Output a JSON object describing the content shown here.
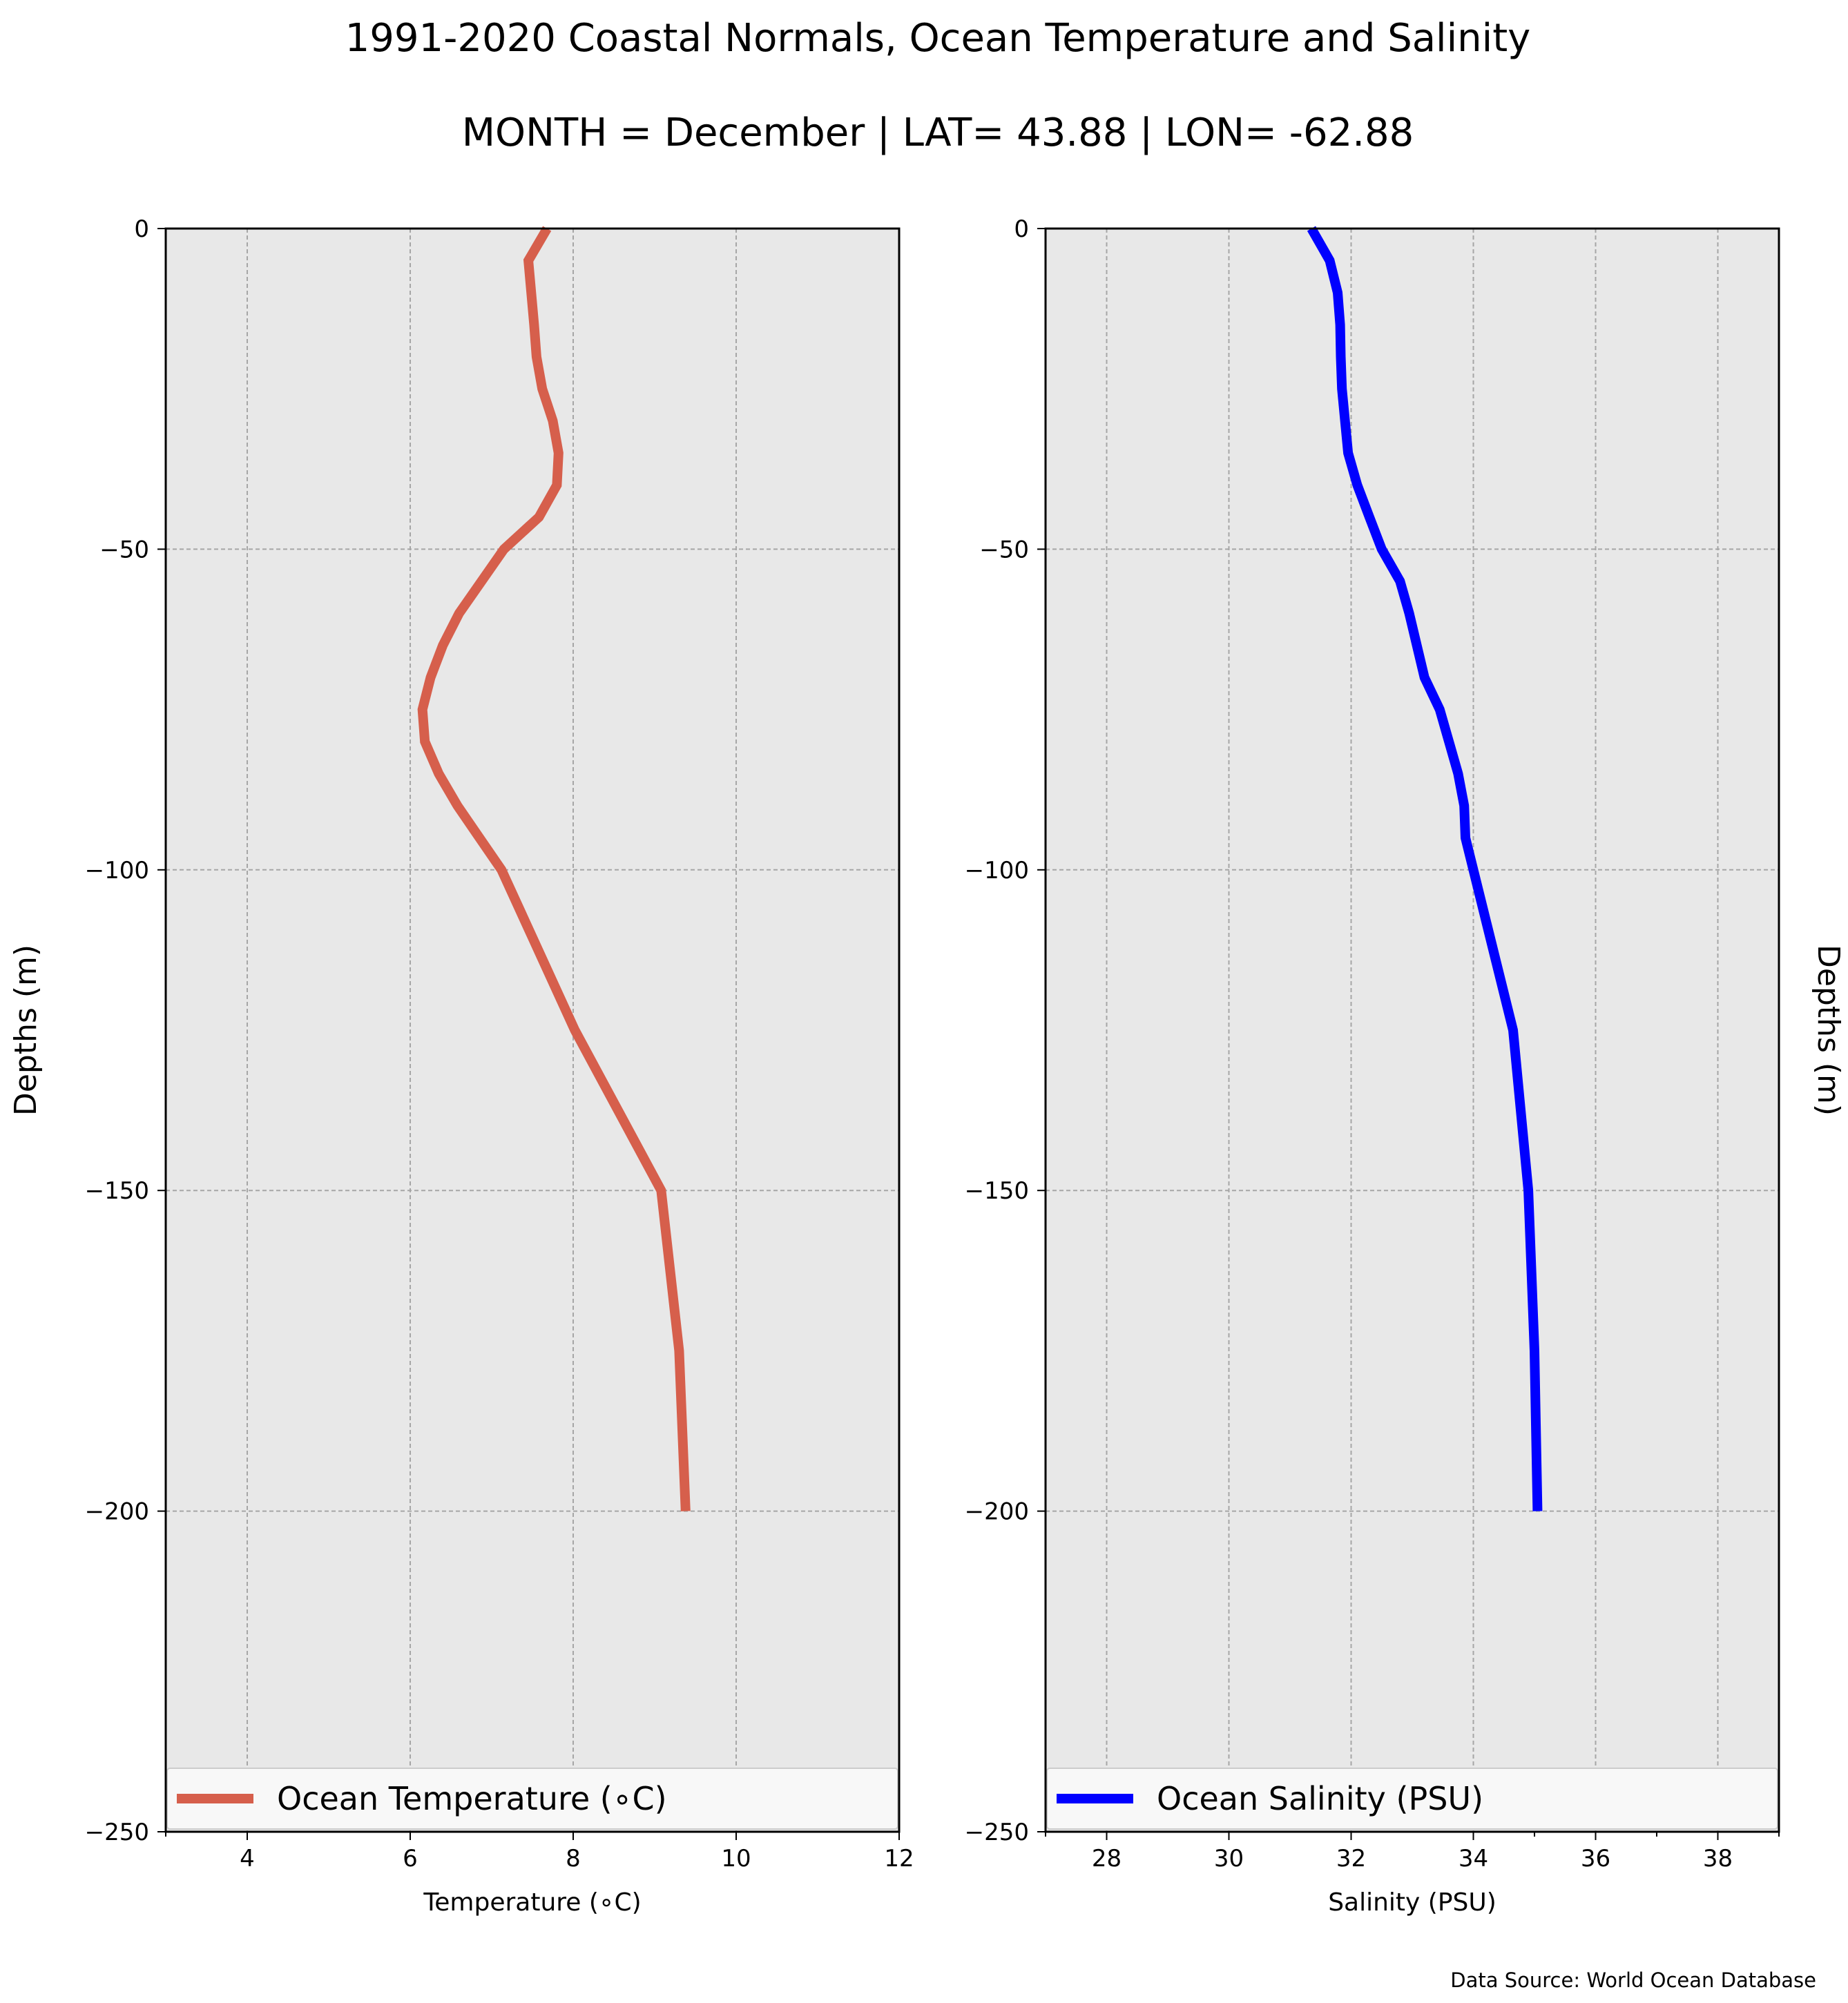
{
  "title": "1991-2020 Coastal Normals, Ocean Temperature and Salinity",
  "subtitle": "MONTH = December | LAT= 43.88 | LON= -62.88",
  "source": "Data Source: World Ocean Database",
  "colors": {
    "background": "#ffffff",
    "plot_background": "#e8e8e8",
    "grid": "#a6a6a6",
    "temperature": "#d65f4c",
    "salinity": "#0000ff"
  },
  "chart_data": [
    {
      "type": "line",
      "xlabel": "Temperature ($^\\circ$C)",
      "xlabel_display": "Temperature (∘C)",
      "ylabel": "Depths (m)",
      "xlim": [
        3,
        12
      ],
      "ylim": [
        -250,
        0
      ],
      "xticks": [
        4,
        6,
        8,
        10,
        12
      ],
      "xtick_labels": [
        "4",
        "6",
        "8",
        "10",
        "12"
      ],
      "yticks": [
        0,
        -50,
        -100,
        -150,
        -200,
        -250
      ],
      "ytick_labels": [
        "0",
        "−50",
        "−100",
        "−150",
        "−200",
        "−250"
      ],
      "grid": true,
      "legend_position": "bottom",
      "series": [
        {
          "name": "Ocean Temperature ($^\\circ$C)",
          "legend_label": "Ocean Temperature (∘C)",
          "color": "#d65f4c",
          "x": [
            7.68,
            7.45,
            7.52,
            7.55,
            7.62,
            7.75,
            7.82,
            7.8,
            7.58,
            7.15,
            6.6,
            6.4,
            6.25,
            6.15,
            6.18,
            6.35,
            6.58,
            6.85,
            7.12,
            8.02,
            9.08,
            9.3,
            9.38
          ],
          "y": [
            0,
            -5,
            -15,
            -20,
            -25,
            -30,
            -35,
            -40,
            -45,
            -50,
            -60,
            -65,
            -70,
            -75,
            -80,
            -85,
            -90,
            -95,
            -100,
            -125,
            -150,
            -175,
            -200
          ]
        }
      ]
    },
    {
      "type": "line",
      "xlabel": "Salinity (PSU)",
      "ylabel": "Depths (m)",
      "xlim": [
        27,
        39
      ],
      "ylim": [
        -250,
        0
      ],
      "xticks": [
        28,
        30,
        32,
        34,
        36,
        38
      ],
      "xtick_labels": [
        "28",
        "30",
        "32",
        "34",
        "36",
        "38"
      ],
      "yticks": [
        0,
        -50,
        -100,
        -150,
        -200,
        -250
      ],
      "ytick_labels": [
        "0",
        "−50",
        "−100",
        "−150",
        "−200",
        "−250"
      ],
      "grid": true,
      "legend_position": "bottom",
      "series": [
        {
          "name": "Ocean Salinity (PSU)",
          "color": "#0000ff",
          "x": [
            31.35,
            31.65,
            31.78,
            31.82,
            31.83,
            31.85,
            31.95,
            32.1,
            32.3,
            32.5,
            32.8,
            32.95,
            33.2,
            33.45,
            33.6,
            33.75,
            33.85,
            33.87,
            34.65,
            34.9,
            35.0,
            35.05
          ],
          "y": [
            0,
            -5,
            -10,
            -15,
            -20,
            -25,
            -35,
            -40,
            -45,
            -50,
            -55,
            -60,
            -70,
            -75,
            -80,
            -85,
            -90,
            -95,
            -125,
            -150,
            -175,
            -200
          ]
        }
      ]
    }
  ]
}
